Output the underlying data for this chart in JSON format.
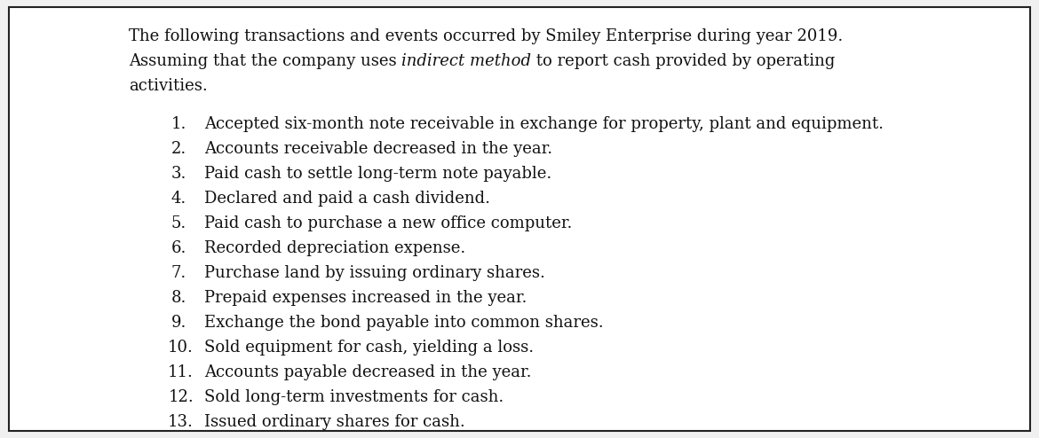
{
  "bg_color": "#f0f0f0",
  "inner_bg": "#ffffff",
  "border_color": "#222222",
  "items": [
    "Accepted six-month note receivable in exchange for property, plant and equipment.",
    "Accounts receivable decreased in the year.",
    "Paid cash to settle long-term note payable.",
    "Declared and paid a cash dividend.",
    "Paid cash to purchase a new office computer.",
    "Recorded depreciation expense.",
    "Purchase land by issuing ordinary shares.",
    "Prepaid expenses increased in the year.",
    "Exchange the bond payable into common shares.",
    "Sold equipment for cash, yielding a loss.",
    "Accounts payable decreased in the year.",
    "Sold long-term investments for cash.",
    "Issued ordinary shares for cash."
  ],
  "intro_line1": "The following transactions and events occurred by Smiley Enterprise during year 2019.",
  "intro_line2_before": "Assuming that the company uses ",
  "intro_line2_italic": "indirect method",
  "intro_line2_after": " to report cash provided by operating",
  "intro_line3": "activities.",
  "font_size": 13.0,
  "font_family": "DejaVu Serif",
  "text_color": "#111111"
}
